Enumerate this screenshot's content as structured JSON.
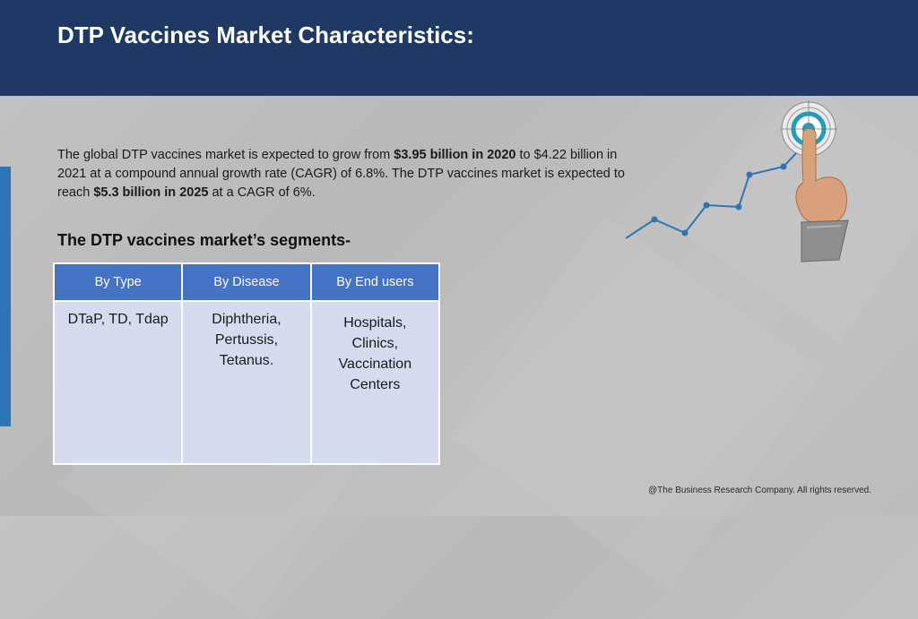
{
  "slide": {
    "title": "DTP Vaccines Market Characteristics:",
    "intro": {
      "p1": "The global DTP vaccines market is expected to grow from ",
      "b1": "$3.95 billion in 2020",
      "p2": " to $4.22 billion in 2021 at a compound annual growth rate (CAGR) of 6.8%.  The DTP vaccines market is expected to reach ",
      "b2": "$5.3 billion in 2025",
      "p3": " at a CAGR of 6%."
    },
    "segments_heading": "The DTP vaccines market’s segments-",
    "table": {
      "headers": [
        "By Type",
        "By Disease",
        "By End users"
      ],
      "cells": [
        [
          "DTaP, TD, Tdap"
        ],
        [
          "Diphtheria,",
          "Pertussis,",
          "Tetanus."
        ],
        [
          "Hospitals,",
          "Clinics,",
          "Vaccination",
          "Centers"
        ]
      ]
    },
    "footer": "@The Business Research Company. All rights reserved.",
    "colors": {
      "header_bg": "#1f3864",
      "accent": "#2e75b6",
      "table_header": "#4472c4",
      "table_cell": "#d6dcf0"
    },
    "icons": [
      "target-icon",
      "pointing-hand-icon",
      "growth-line-icon"
    ]
  }
}
